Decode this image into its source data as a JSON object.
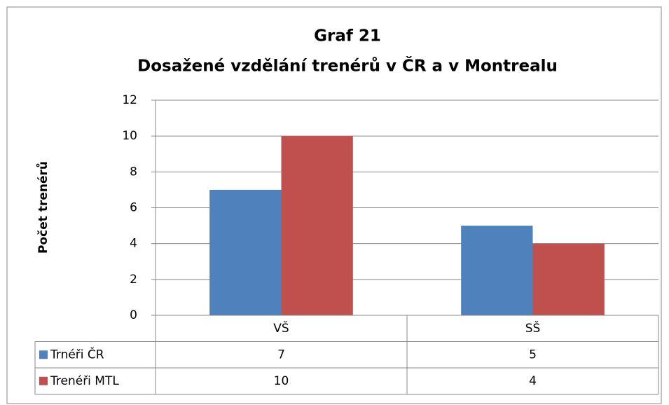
{
  "chart_data": {
    "type": "bar",
    "title": "Graf 21",
    "subtitle": "Dosažené vzdělání trenérů v ČR a v Montrealu",
    "y_label": "Počet trenérů",
    "categories": [
      "VŠ",
      "SŠ"
    ],
    "series": [
      {
        "name": "Trnéři ČR",
        "color": "#4f81bd",
        "values": [
          7,
          5
        ]
      },
      {
        "name": "Trenéři MTL",
        "color": "#c0504d",
        "values": [
          10,
          4
        ]
      }
    ],
    "ylim": [
      0,
      12
    ],
    "yticks": [
      0,
      2,
      4,
      6,
      8,
      10,
      12
    ],
    "grid": true,
    "data_table": true
  }
}
